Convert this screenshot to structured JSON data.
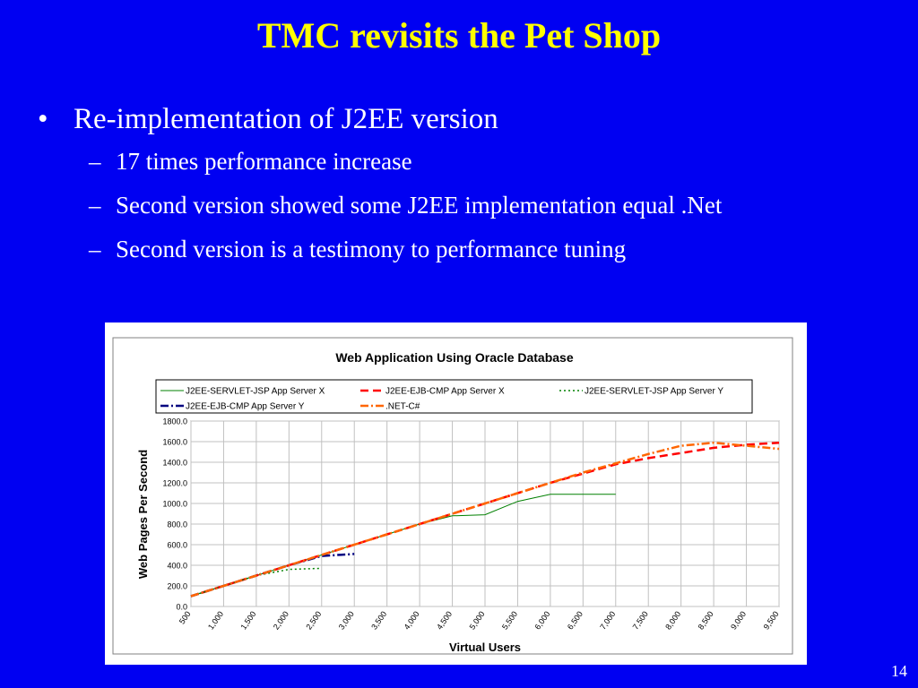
{
  "slide": {
    "title": "TMC revisits the Pet Shop",
    "bullets": [
      {
        "text": "Re-implementation of J2EE version",
        "level": 1
      },
      {
        "text": "17 times performance increase",
        "level": 2
      },
      {
        "text": "Second version showed some J2EE implementation equal .Net",
        "level": 2
      },
      {
        "text": "Second version is a testimony to performance tuning",
        "level": 2
      }
    ],
    "page_number": "14"
  },
  "colors": {
    "background": "#0000f2",
    "title": "#ffff00",
    "text": "#ffffff"
  },
  "chart_data": {
    "type": "line",
    "title": "Web Application Using Oracle Database",
    "xlabel": "Virtual Users",
    "ylabel": "Web Pages Per Second",
    "x": [
      500,
      1000,
      1500,
      2000,
      2500,
      3000,
      3500,
      4000,
      4500,
      5000,
      5500,
      6000,
      6500,
      7000,
      7500,
      8000,
      8500,
      9000,
      9500
    ],
    "x_tick_labels": [
      "500",
      "1,000",
      "1,500",
      "2,000",
      "2,500",
      "3,000",
      "3,500",
      "4,000",
      "4,500",
      "5,000",
      "5,500",
      "6,000",
      "6,500",
      "7,000",
      "7,500",
      "8,000",
      "8,500",
      "9,000",
      "9,500"
    ],
    "ylim": [
      0,
      1800
    ],
    "y_ticks": [
      0,
      200,
      400,
      600,
      800,
      1000,
      1200,
      1400,
      1600,
      1800
    ],
    "y_tick_labels": [
      "0.0",
      "200.0",
      "400.0",
      "600.0",
      "800.0",
      "1000.0",
      "1200.0",
      "1400.0",
      "1600.0",
      "1800.0"
    ],
    "grid": true,
    "legend_position": "top",
    "series": [
      {
        "name": "J2EE-SERVLET-JSP App Server X",
        "color": "#008000",
        "dash": "solid",
        "values": [
          100,
          200,
          300,
          400,
          500,
          600,
          700,
          800,
          880,
          890,
          1020,
          1090,
          1090,
          1090,
          null,
          null,
          null,
          null,
          null
        ]
      },
      {
        "name": "J2EE-EJB-CMP App Server X",
        "color": "#ff0000",
        "dash": "dash",
        "values": [
          100,
          200,
          300,
          400,
          500,
          600,
          700,
          800,
          900,
          1000,
          1100,
          1200,
          1290,
          1380,
          1440,
          1490,
          1540,
          1570,
          1590
        ]
      },
      {
        "name": "J2EE-SERVLET-JSP App Server Y",
        "color": "#008000",
        "dash": "dot",
        "values": [
          100,
          200,
          300,
          360,
          370,
          null,
          null,
          null,
          null,
          null,
          null,
          null,
          null,
          null,
          null,
          null,
          null,
          null,
          null
        ]
      },
      {
        "name": "J2EE-EJB-CMP App Server Y",
        "color": "#000080",
        "dash": "dashdot",
        "values": [
          100,
          200,
          300,
          400,
          490,
          510,
          null,
          null,
          null,
          null,
          null,
          null,
          null,
          null,
          null,
          null,
          null,
          null,
          null
        ]
      },
      {
        "name": ".NET-C#",
        "color": "#ff6600",
        "dash": "dashdot",
        "values": [
          100,
          200,
          300,
          400,
          500,
          600,
          700,
          800,
          900,
          1000,
          1100,
          1200,
          1300,
          1390,
          1480,
          1560,
          1590,
          1560,
          1530
        ]
      }
    ]
  }
}
